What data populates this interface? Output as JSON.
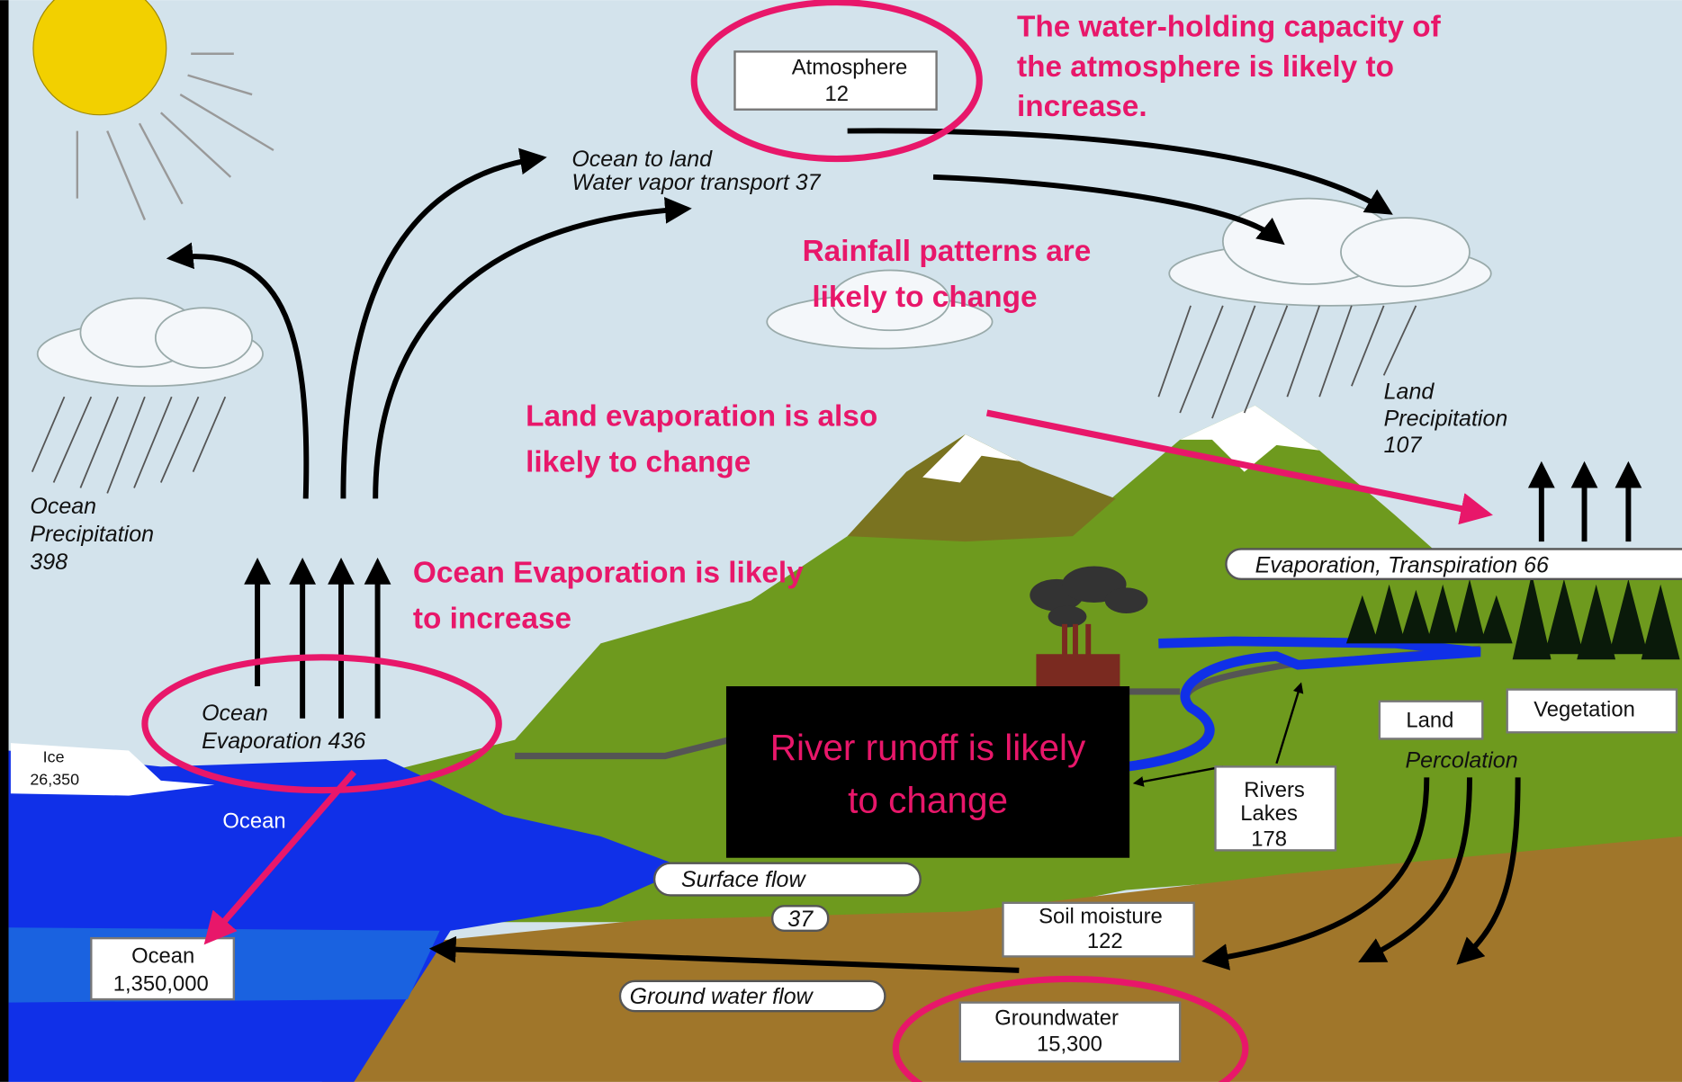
{
  "atmosphere": {
    "name": "Atmosphere",
    "amount": "12"
  },
  "ocean_to_land": [
    "Ocean to land",
    "Water vapor transport 37"
  ],
  "land_precipitation": [
    "Land",
    "Precipitation",
    "107"
  ],
  "ocean_precipitation": [
    "Ocean",
    "Precipitation",
    "398"
  ],
  "ocean_evaporation": [
    "Ocean",
    "Evaporation 436"
  ],
  "evapotranspiration": "Evaporation, Transpiration 66",
  "ice": {
    "name": "Ice",
    "amount": "26,350"
  },
  "ocean_label": "Ocean",
  "ocean_store": {
    "name": "Ocean",
    "amount": "1,350,000"
  },
  "surface_flow": {
    "name": "Surface flow",
    "amount": "37"
  },
  "ground_water_flow": "Ground water flow",
  "soil_moisture": {
    "name": "Soil moisture",
    "amount": "122"
  },
  "groundwater": {
    "name": "Groundwater",
    "amount": "15,300"
  },
  "rivers_lakes": {
    "name": [
      "Rivers",
      "Lakes"
    ],
    "amount": "178"
  },
  "land": "Land",
  "vegetation": "Vegetation",
  "percolation": "Percolation",
  "annotations": {
    "atmosphere": [
      "The water-holding capacity of",
      "the atmosphere is likely to",
      "increase."
    ],
    "rainfall": [
      "Rainfall patterns are",
      "likely to change"
    ],
    "land_evaporation": [
      "Land evaporation is also",
      "likely to change"
    ],
    "ocean_evaporation": [
      "Ocean Evaporation is likely",
      "to increase"
    ],
    "river_runoff": [
      "River runoff is likely",
      "to change"
    ]
  }
}
